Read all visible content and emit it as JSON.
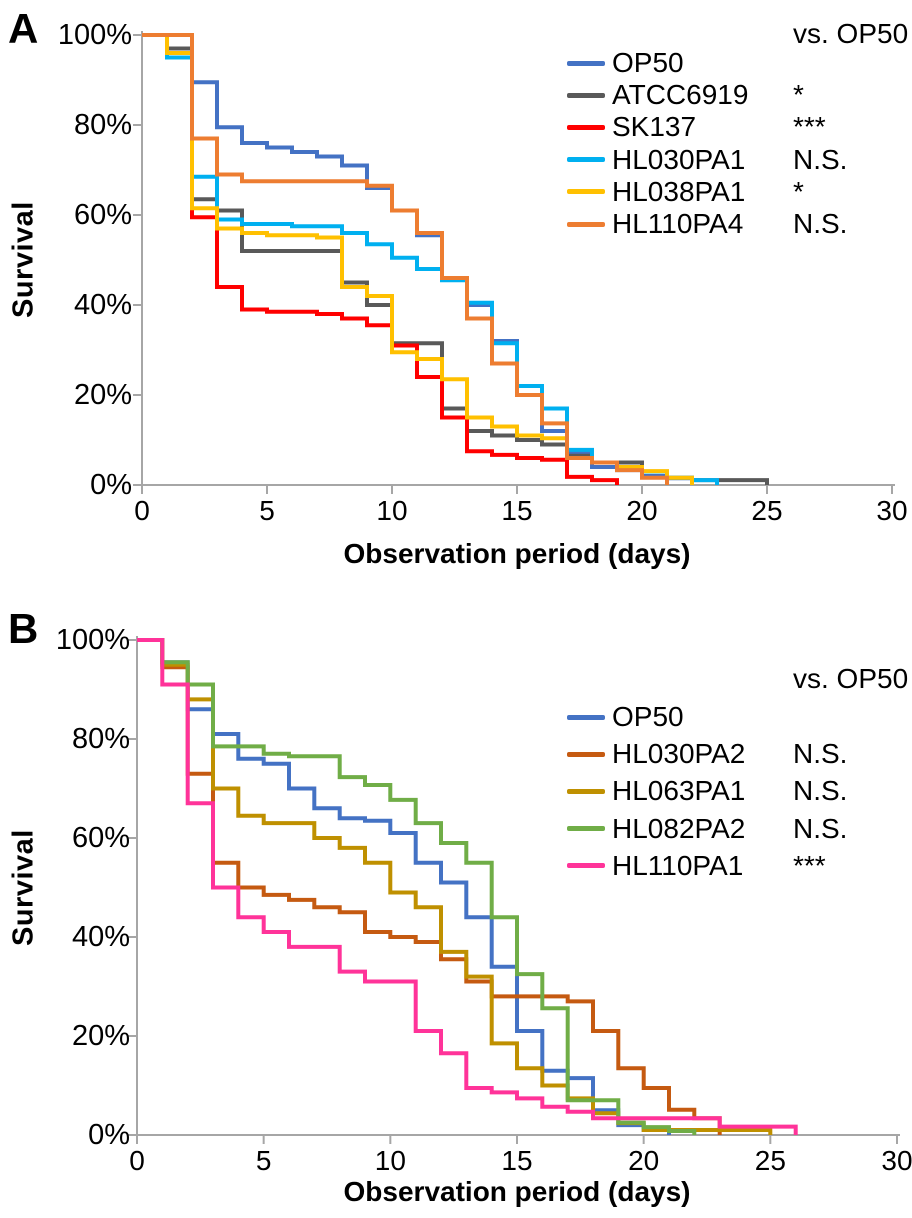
{
  "figure": {
    "background": "#ffffff",
    "axis_color": "#a6a6a6",
    "text_color": "#000000"
  },
  "panels": [
    {
      "letter": "A"
    },
    {
      "letter": "B"
    }
  ],
  "chart_data": [
    {
      "type": "line",
      "step": true,
      "panel": "A",
      "title": "",
      "xlabel": "Observation period (days)",
      "ylabel": "Survival",
      "sig_header": "vs. OP50",
      "xlim": [
        0,
        30
      ],
      "ylim": [
        0,
        100
      ],
      "x_tick_values": [
        0,
        5,
        10,
        15,
        20,
        25,
        30
      ],
      "x_tick_labels": [
        "0",
        "5",
        "10",
        "15",
        "20",
        "25",
        "30"
      ],
      "y_tick_values": [
        100,
        80,
        60,
        40,
        20,
        0
      ],
      "y_tick_labels": [
        "100%",
        "80%",
        "60%",
        "40%",
        "20%",
        "0%"
      ],
      "grid": false,
      "legend_position": "top-right",
      "series": [
        {
          "name": "OP50",
          "color": "#4472C4",
          "sig": "",
          "points": [
            [
              0,
              100
            ],
            [
              2,
              89.5
            ],
            [
              3,
              79.5
            ],
            [
              4,
              76
            ],
            [
              5,
              75
            ],
            [
              6,
              74
            ],
            [
              7,
              73
            ],
            [
              8,
              71
            ],
            [
              9,
              66
            ],
            [
              10,
              61
            ],
            [
              11,
              55.5
            ],
            [
              12,
              46
            ],
            [
              13,
              40
            ],
            [
              14,
              32
            ],
            [
              15,
              22
            ],
            [
              16,
              12
            ],
            [
              17,
              7
            ],
            [
              18,
              4
            ],
            [
              19,
              3.3
            ],
            [
              20,
              2
            ],
            [
              21,
              1.5
            ],
            [
              22,
              0
            ]
          ]
        },
        {
          "name": "ATCC6919",
          "color": "#595959",
          "sig": "*",
          "points": [
            [
              0,
              100
            ],
            [
              1,
              97
            ],
            [
              2,
              63.5
            ],
            [
              3,
              61
            ],
            [
              4,
              52
            ],
            [
              8,
              45
            ],
            [
              9,
              40
            ],
            [
              10,
              31.5
            ],
            [
              12,
              17
            ],
            [
              13,
              12
            ],
            [
              14,
              11
            ],
            [
              15,
              10
            ],
            [
              16,
              9
            ],
            [
              17,
              6.5
            ],
            [
              18,
              5
            ],
            [
              20,
              3
            ],
            [
              21,
              1.6
            ],
            [
              22,
              1.1
            ],
            [
              25,
              0
            ]
          ]
        },
        {
          "name": "SK137",
          "color": "#FF0000",
          "sig": "***",
          "points": [
            [
              0,
              100
            ],
            [
              2,
              59.5
            ],
            [
              3,
              44
            ],
            [
              4,
              39
            ],
            [
              5,
              38.5
            ],
            [
              7,
              38
            ],
            [
              8,
              37
            ],
            [
              9,
              35.5
            ],
            [
              10,
              31
            ],
            [
              11,
              24
            ],
            [
              12,
              15
            ],
            [
              13,
              7.5
            ],
            [
              14,
              6.7
            ],
            [
              15,
              6
            ],
            [
              16,
              5.6
            ],
            [
              17,
              1.8
            ],
            [
              18,
              1.1
            ],
            [
              19,
              0
            ]
          ]
        },
        {
          "name": "HL030PA1",
          "color": "#00B0F0",
          "sig": "N.S.",
          "points": [
            [
              0,
              100
            ],
            [
              1,
              95
            ],
            [
              2,
              68.5
            ],
            [
              3,
              59
            ],
            [
              4,
              58
            ],
            [
              6,
              57.5
            ],
            [
              8,
              56
            ],
            [
              9,
              53.5
            ],
            [
              10,
              50.5
            ],
            [
              11,
              48
            ],
            [
              12,
              45.5
            ],
            [
              13,
              40.5
            ],
            [
              14,
              31.5
            ],
            [
              15,
              22
            ],
            [
              16,
              17
            ],
            [
              17,
              7.8
            ],
            [
              18,
              5
            ],
            [
              19,
              4
            ],
            [
              20,
              3
            ],
            [
              21,
              1.6
            ],
            [
              22,
              1.1
            ],
            [
              23,
              0
            ]
          ]
        },
        {
          "name": "HL038PA1",
          "color": "#FFC000",
          "sig": "*",
          "points": [
            [
              0,
              100
            ],
            [
              1,
              96
            ],
            [
              2,
              61.5
            ],
            [
              3,
              57
            ],
            [
              4,
              56
            ],
            [
              5,
              55.5
            ],
            [
              7,
              55
            ],
            [
              8,
              44
            ],
            [
              9,
              42
            ],
            [
              10,
              29.5
            ],
            [
              11,
              28
            ],
            [
              12,
              23.5
            ],
            [
              13,
              15
            ],
            [
              14,
              13
            ],
            [
              15,
              11
            ],
            [
              16,
              10.4
            ],
            [
              17,
              6
            ],
            [
              18,
              5
            ],
            [
              19,
              4
            ],
            [
              20,
              3.1
            ],
            [
              21,
              1.6
            ],
            [
              22,
              0
            ]
          ]
        },
        {
          "name": "HL110PA4",
          "color": "#ED7D31",
          "sig": "N.S.",
          "points": [
            [
              0,
              100
            ],
            [
              2,
              77
            ],
            [
              3,
              69
            ],
            [
              4,
              67.5
            ],
            [
              9,
              66.5
            ],
            [
              10,
              61
            ],
            [
              11,
              56
            ],
            [
              12,
              46
            ],
            [
              13,
              37
            ],
            [
              14,
              27
            ],
            [
              15,
              20
            ],
            [
              16,
              13.7
            ],
            [
              17,
              6
            ],
            [
              18,
              5
            ],
            [
              19,
              3.3
            ],
            [
              20,
              1.6
            ],
            [
              21,
              0
            ]
          ]
        }
      ]
    },
    {
      "type": "line",
      "step": true,
      "panel": "B",
      "title": "",
      "xlabel": "Observation period (days)",
      "ylabel": "Survival",
      "sig_header": "vs. OP50",
      "xlim": [
        0,
        30
      ],
      "ylim": [
        0,
        100
      ],
      "x_tick_values": [
        0,
        5,
        10,
        15,
        20,
        25,
        30
      ],
      "x_tick_labels": [
        "0",
        "5",
        "10",
        "15",
        "20",
        "25",
        "30"
      ],
      "y_tick_values": [
        100,
        80,
        60,
        40,
        20,
        0
      ],
      "y_tick_labels": [
        "100%",
        "80%",
        "60%",
        "40%",
        "20%",
        "0%"
      ],
      "grid": false,
      "legend_position": "top-right",
      "series": [
        {
          "name": "OP50",
          "color": "#4472C4",
          "sig": "",
          "points": [
            [
              0,
              100
            ],
            [
              1,
              95.5
            ],
            [
              2,
              86
            ],
            [
              3,
              81
            ],
            [
              4,
              76
            ],
            [
              5,
              75
            ],
            [
              6,
              70
            ],
            [
              7,
              66
            ],
            [
              8,
              64
            ],
            [
              9,
              63.5
            ],
            [
              10,
              61
            ],
            [
              11,
              55
            ],
            [
              12,
              51
            ],
            [
              13,
              44
            ],
            [
              14,
              34
            ],
            [
              15,
              21
            ],
            [
              16,
              13
            ],
            [
              17,
              11.5
            ],
            [
              18,
              5
            ],
            [
              19,
              2
            ],
            [
              20,
              1
            ],
            [
              21,
              0
            ]
          ]
        },
        {
          "name": "HL030PA2",
          "color": "#C55A11",
          "sig": "N.S.",
          "points": [
            [
              0,
              100
            ],
            [
              1,
              94.5
            ],
            [
              2,
              73
            ],
            [
              3,
              55
            ],
            [
              4,
              50
            ],
            [
              5,
              48.5
            ],
            [
              6,
              47.5
            ],
            [
              7,
              46
            ],
            [
              8,
              45
            ],
            [
              9,
              41
            ],
            [
              10,
              40
            ],
            [
              11,
              39
            ],
            [
              12,
              35.5
            ],
            [
              13,
              31
            ],
            [
              14,
              28
            ],
            [
              17,
              27
            ],
            [
              18,
              21
            ],
            [
              19,
              13.5
            ],
            [
              20,
              9.5
            ],
            [
              21,
              5.1
            ],
            [
              22,
              3.4
            ],
            [
              23,
              0
            ]
          ]
        },
        {
          "name": "HL063PA1",
          "color": "#BF9000",
          "sig": "N.S.",
          "points": [
            [
              0,
              100
            ],
            [
              1,
              95
            ],
            [
              2,
              88
            ],
            [
              3,
              70
            ],
            [
              4,
              64.5
            ],
            [
              5,
              63
            ],
            [
              7,
              60
            ],
            [
              8,
              58
            ],
            [
              9,
              55
            ],
            [
              10,
              49
            ],
            [
              11,
              46
            ],
            [
              12,
              37
            ],
            [
              13,
              32
            ],
            [
              14,
              18.5
            ],
            [
              15,
              13.5
            ],
            [
              16,
              10
            ],
            [
              17,
              7.4
            ],
            [
              18,
              4.4
            ],
            [
              19,
              2.4
            ],
            [
              20,
              1
            ],
            [
              25,
              0
            ]
          ]
        },
        {
          "name": "HL082PA2",
          "color": "#70AD47",
          "sig": "N.S.",
          "points": [
            [
              0,
              100
            ],
            [
              1,
              95.5
            ],
            [
              2,
              91
            ],
            [
              3,
              78.5
            ],
            [
              5,
              77
            ],
            [
              6,
              76.5
            ],
            [
              8,
              72.3
            ],
            [
              9,
              70.7
            ],
            [
              10,
              67.7
            ],
            [
              11,
              63
            ],
            [
              12,
              59
            ],
            [
              13,
              55
            ],
            [
              14,
              44
            ],
            [
              15,
              32.5
            ],
            [
              16,
              25.6
            ],
            [
              17,
              7
            ],
            [
              19,
              2.5
            ],
            [
              20,
              1.6
            ],
            [
              21,
              0.8
            ],
            [
              22,
              0
            ]
          ]
        },
        {
          "name": "HL110PA1",
          "color": "#FF3399",
          "sig": "***",
          "points": [
            [
              0,
              100
            ],
            [
              1,
              91
            ],
            [
              2,
              67
            ],
            [
              3,
              50
            ],
            [
              4,
              44
            ],
            [
              5,
              41
            ],
            [
              6,
              38
            ],
            [
              8,
              33
            ],
            [
              9,
              31
            ],
            [
              11,
              21
            ],
            [
              12,
              16.5
            ],
            [
              13,
              9.5
            ],
            [
              14,
              8.6
            ],
            [
              15,
              7.4
            ],
            [
              16,
              5.7
            ],
            [
              17,
              4.7
            ],
            [
              18,
              3.4
            ],
            [
              23,
              1.7
            ],
            [
              26,
              0
            ]
          ]
        }
      ]
    }
  ]
}
